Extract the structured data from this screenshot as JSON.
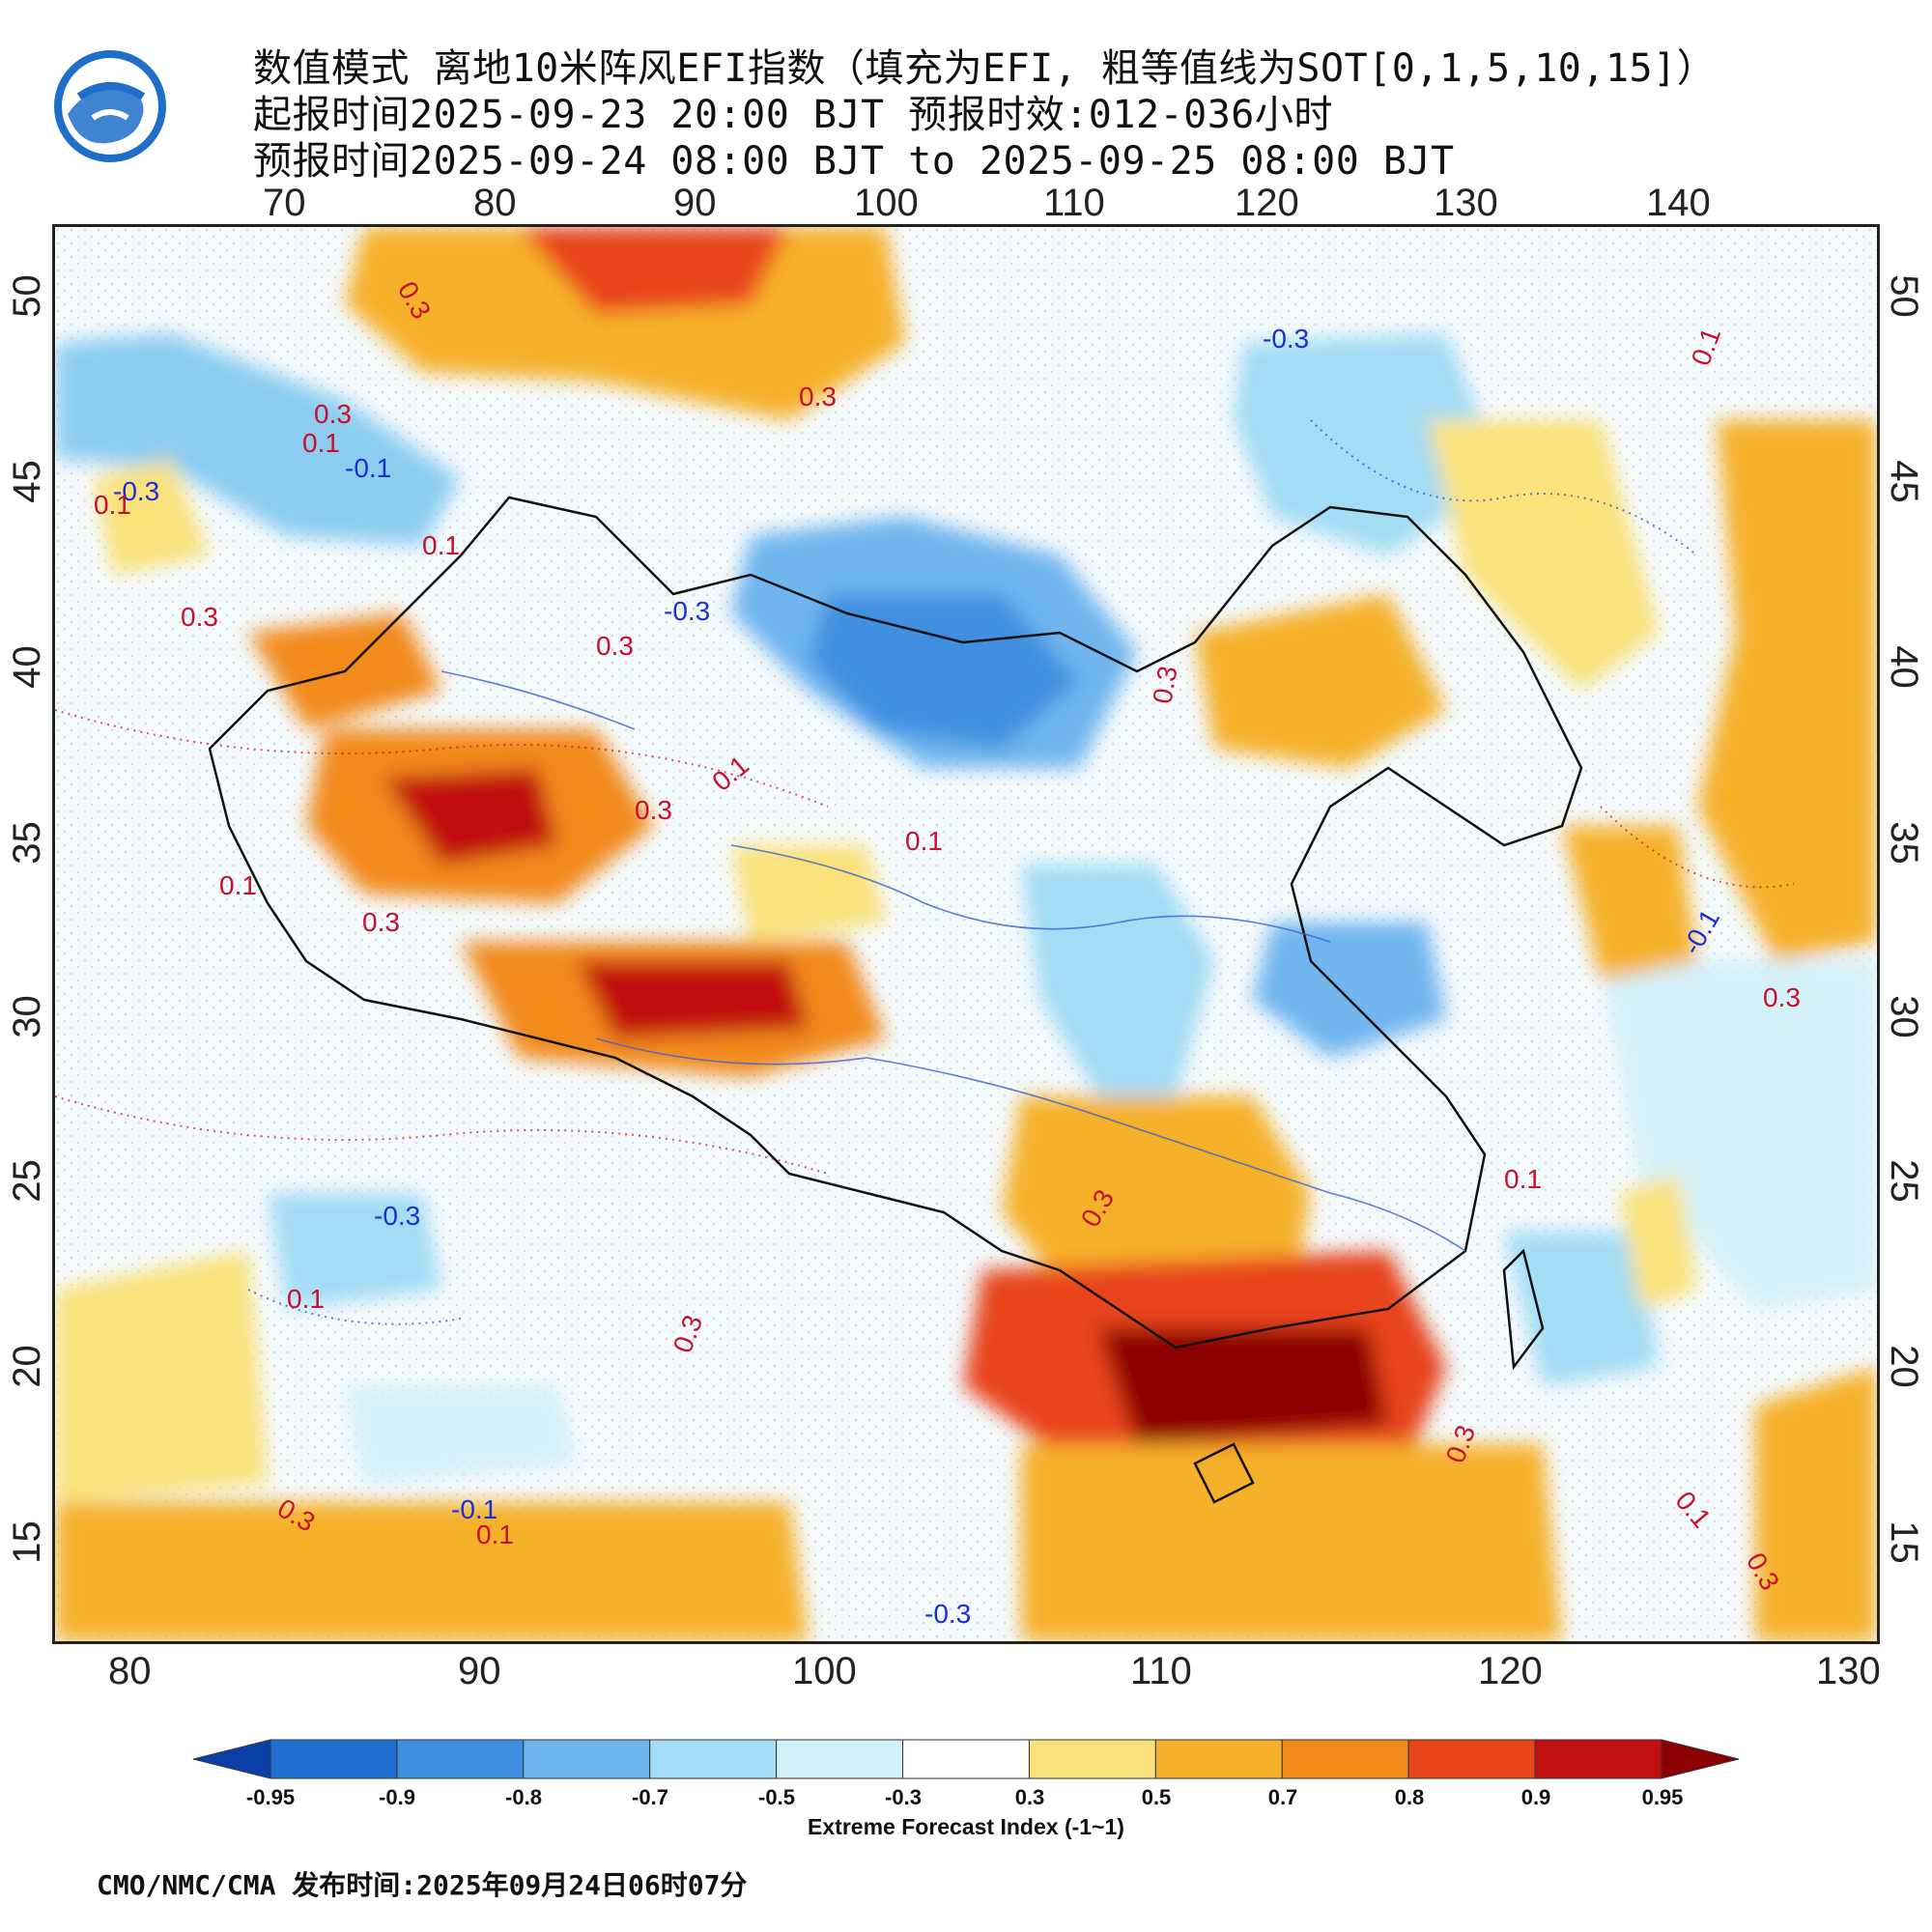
{
  "title": {
    "line1": "数值模式 离地10米阵风EFI指数（填充为EFI, 粗等值线为SOT[0,1,5,10,15]）",
    "line2": "起报时间2025-09-23 20:00 BJT 预报时效:012-036小时",
    "line3": "预报时间2025-09-24 08:00 BJT to 2025-09-25 08:00 BJT"
  },
  "axes": {
    "top_lon": [
      "70",
      "80",
      "90",
      "100",
      "110",
      "120",
      "130",
      "140"
    ],
    "bottom_lon": [
      "80",
      "90",
      "100",
      "110",
      "120",
      "130"
    ],
    "left_lat": [
      "50",
      "45",
      "40",
      "35",
      "30",
      "25",
      "20",
      "15"
    ],
    "right_lat": [
      "50",
      "45",
      "40",
      "35",
      "30",
      "25",
      "20",
      "15"
    ]
  },
  "contour_labels": [
    {
      "text": "0.3",
      "color": "red"
    },
    {
      "text": "0.3",
      "color": "red"
    },
    {
      "text": "0.3",
      "color": "red"
    },
    {
      "text": "0.1",
      "color": "red"
    },
    {
      "text": "-0.1",
      "color": "blue"
    },
    {
      "text": "-0.3",
      "color": "blue"
    },
    {
      "text": "0.1",
      "color": "red"
    },
    {
      "text": "0.3",
      "color": "red"
    },
    {
      "text": "0.1",
      "color": "red"
    },
    {
      "text": "-0.3",
      "color": "blue"
    },
    {
      "text": "0.3",
      "color": "red"
    },
    {
      "text": "-0.3",
      "color": "blue"
    },
    {
      "text": "0.1",
      "color": "red"
    },
    {
      "text": "0.3",
      "color": "red"
    },
    {
      "text": "0.1",
      "color": "red"
    },
    {
      "text": "0.3",
      "color": "red"
    },
    {
      "text": "0.1",
      "color": "red"
    },
    {
      "text": "0.1",
      "color": "red"
    },
    {
      "text": "0.3",
      "color": "red"
    },
    {
      "text": "-0.3",
      "color": "blue"
    },
    {
      "text": "-0.1",
      "color": "blue"
    },
    {
      "text": "0.1",
      "color": "red"
    },
    {
      "text": "0.3",
      "color": "red"
    },
    {
      "text": "0.1",
      "color": "red"
    },
    {
      "text": "0.3",
      "color": "red"
    },
    {
      "text": "0.3",
      "color": "red"
    },
    {
      "text": "0.1",
      "color": "red"
    },
    {
      "text": "0.3",
      "color": "red"
    },
    {
      "text": "0.3",
      "color": "red"
    },
    {
      "text": "0.1",
      "color": "red"
    },
    {
      "text": "0.3",
      "color": "red"
    },
    {
      "text": "-0.1",
      "color": "blue"
    }
  ],
  "colorbar": {
    "labels": [
      "-0.95",
      "-0.9",
      "-0.8",
      "-0.7",
      "-0.5",
      "-0.3",
      "0.3",
      "0.5",
      "0.7",
      "0.8",
      "0.9",
      "0.95"
    ],
    "colors": [
      "#0a3fa8",
      "#1f6fd1",
      "#3f8fe0",
      "#6fb5ee",
      "#a3dcf5",
      "#d3f1f8",
      "#ffffff",
      "#fbe27a",
      "#f6b12a",
      "#f28a1c",
      "#e8451a",
      "#c00f0f",
      "#8b0000"
    ],
    "title": "Extreme Forecast Index (-1~1)"
  },
  "footer": "CMO/NMC/CMA 发布时间:2025年09月24日06时07分"
}
